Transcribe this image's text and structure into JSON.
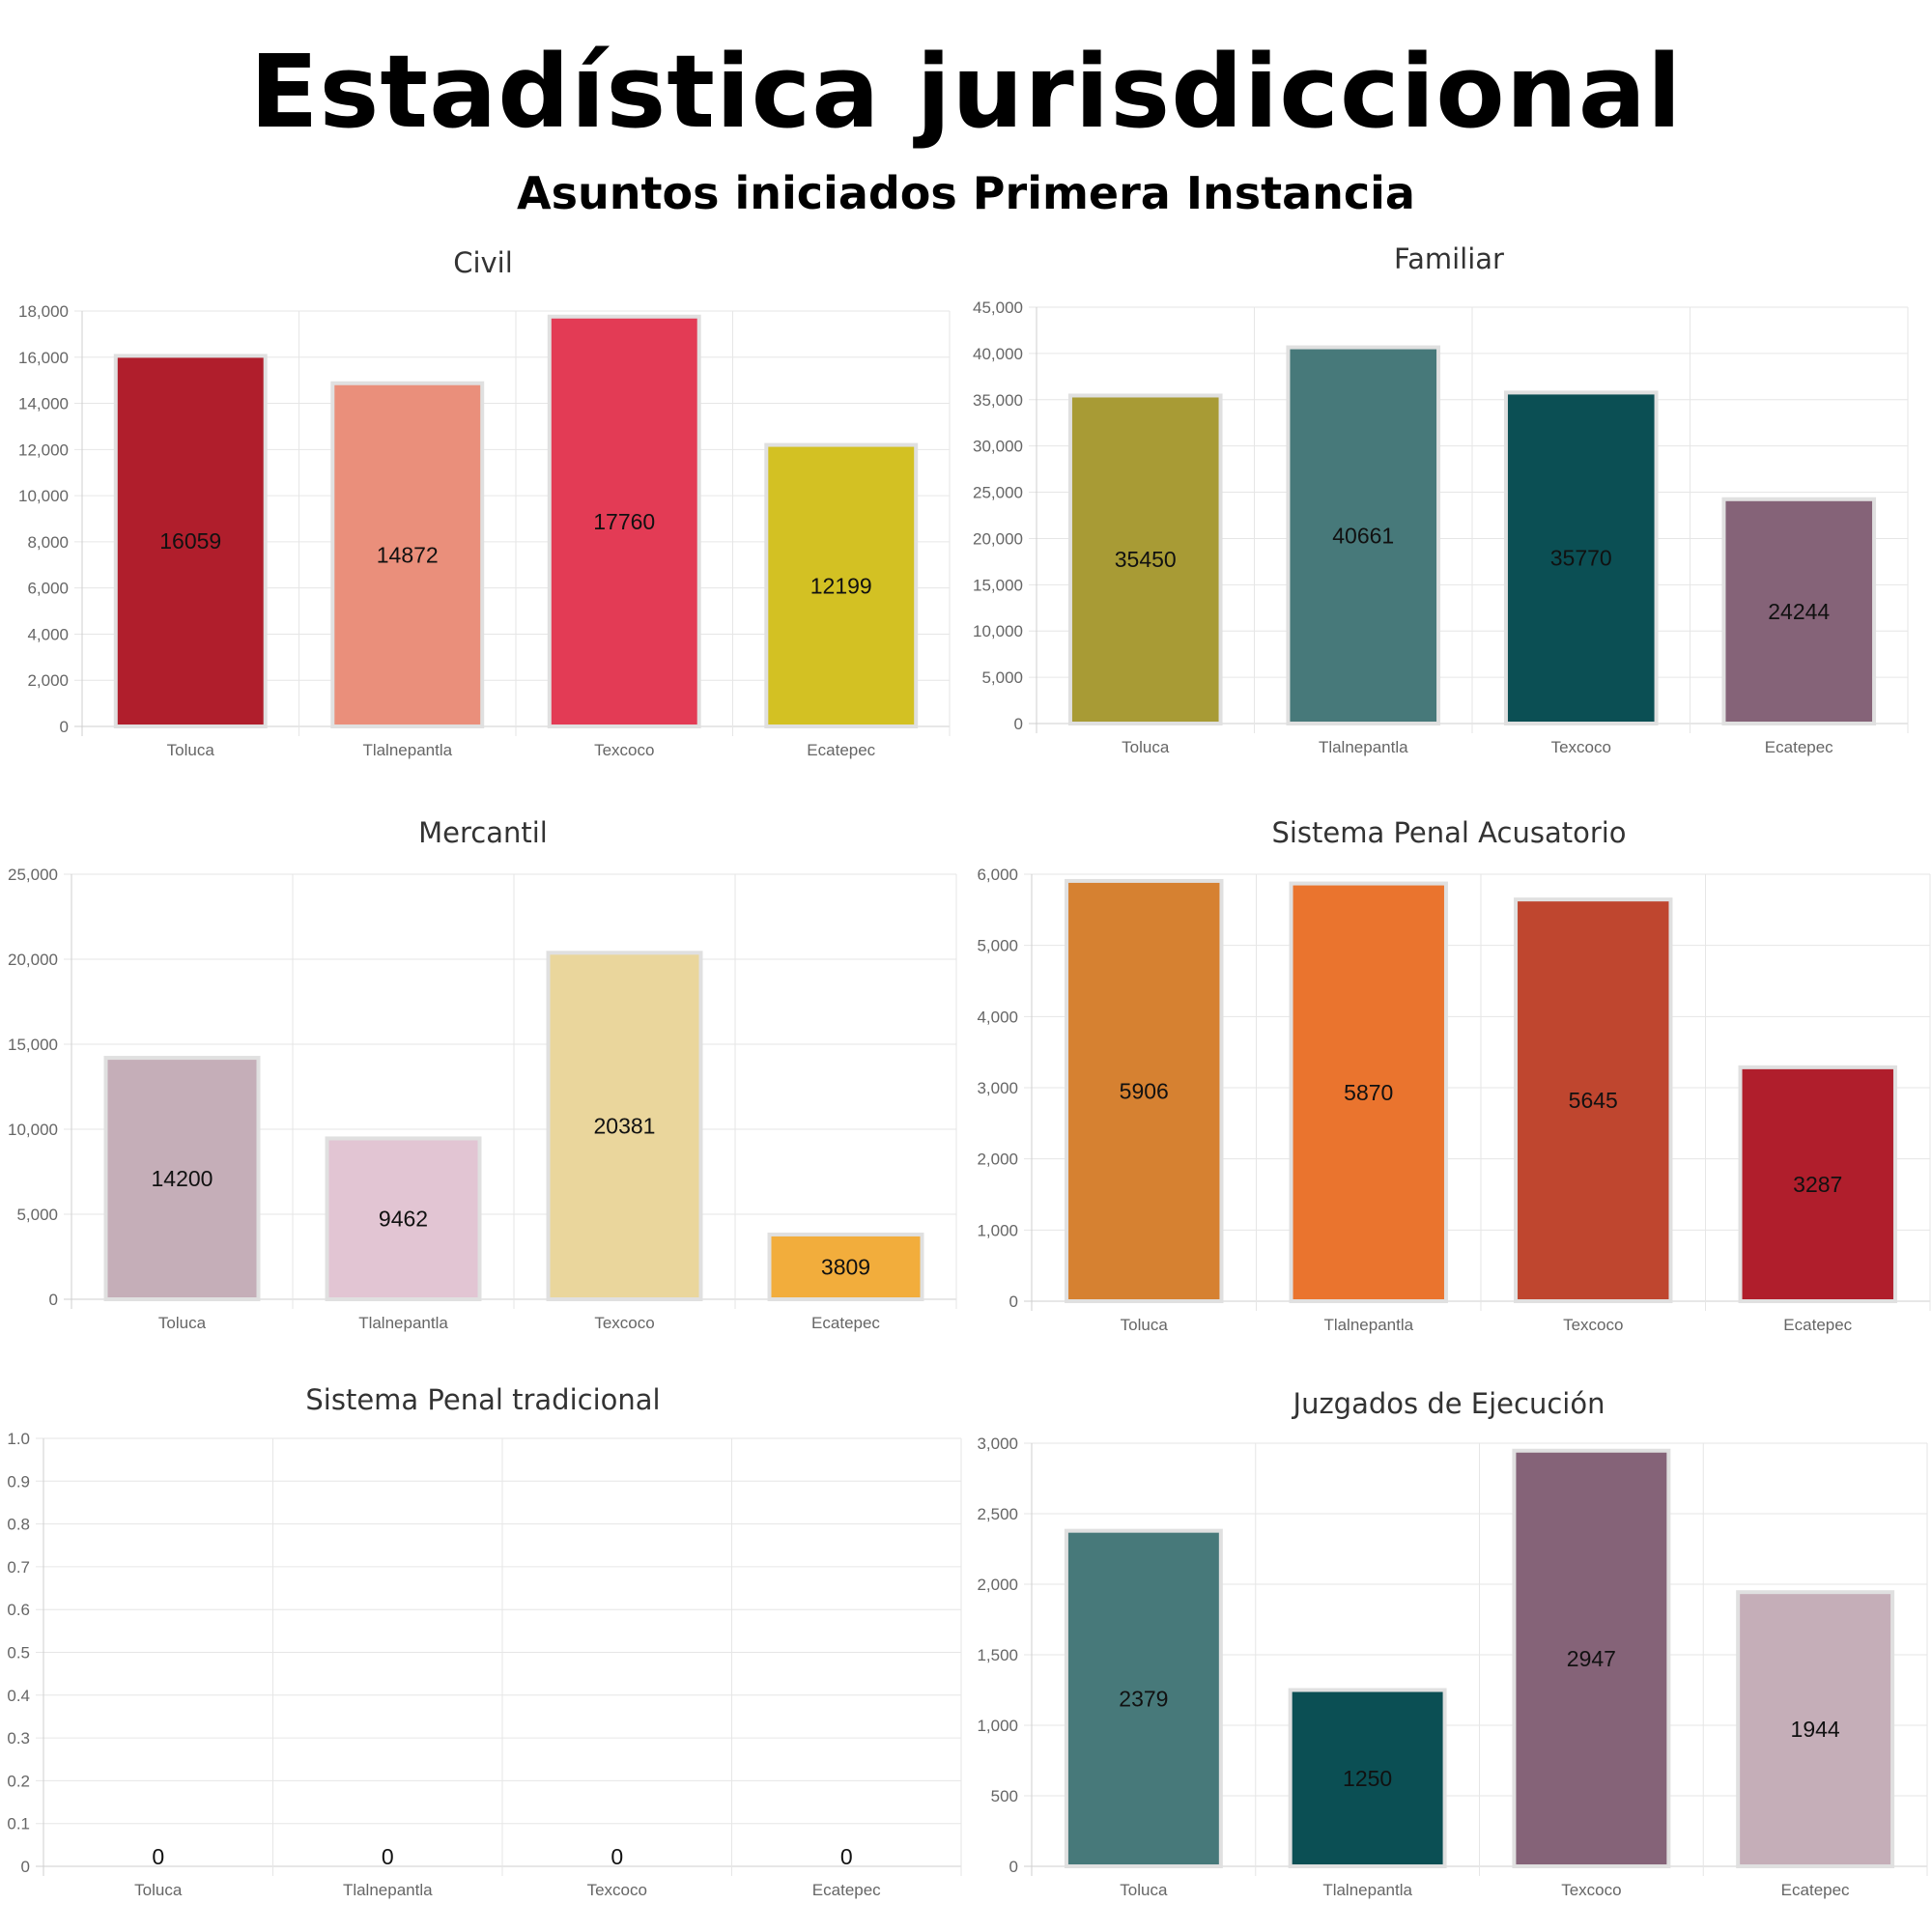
{
  "header": {
    "title": "Estadística jurisdiccional",
    "subtitle": "Asuntos iniciados Primera Instancia"
  },
  "chart_data": [
    {
      "type": "bar",
      "title": "Civil",
      "categories": [
        "Toluca",
        "Tlalnepantla",
        "Texcoco",
        "Ecatepec"
      ],
      "values": [
        16059,
        14872,
        17760,
        12199
      ],
      "colors": [
        "#b01e2c",
        "#ea8f7b",
        "#e33b55",
        "#d3c123"
      ],
      "ylim": [
        0,
        18000
      ],
      "yticks": [
        "0",
        "2,000",
        "4,000",
        "6,000",
        "8,000",
        "10,000",
        "12,000",
        "14,000",
        "16,000",
        "18,000"
      ],
      "grid": true
    },
    {
      "type": "bar",
      "title": "Familiar",
      "categories": [
        "Toluca",
        "Tlalnepantla",
        "Texcoco",
        "Ecatepec"
      ],
      "values": [
        35450,
        40661,
        35770,
        24244
      ],
      "colors": [
        "#a89b35",
        "#47797a",
        "#0b4f54",
        "#856378"
      ],
      "ylim": [
        0,
        45000
      ],
      "yticks": [
        "0",
        "5,000",
        "10,000",
        "15,000",
        "20,000",
        "25,000",
        "30,000",
        "35,000",
        "40,000",
        "45,000"
      ],
      "grid": true
    },
    {
      "type": "bar",
      "title": "Mercantil",
      "categories": [
        "Toluca",
        "Tlalnepantla",
        "Texcoco",
        "Ecatepec"
      ],
      "values": [
        14200,
        9462,
        20381,
        3809
      ],
      "colors": [
        "#c5aeb8",
        "#e2c5d3",
        "#ead69c",
        "#f2ad3c"
      ],
      "ylim": [
        0,
        25000
      ],
      "yticks": [
        "0",
        "5,000",
        "10,000",
        "15,000",
        "20,000",
        "25,000"
      ],
      "grid": true
    },
    {
      "type": "bar",
      "title": "Sistema Penal Acusatorio",
      "categories": [
        "Toluca",
        "Tlalnepantla",
        "Texcoco",
        "Ecatepec"
      ],
      "values": [
        5906,
        5870,
        5645,
        3287
      ],
      "colors": [
        "#d68131",
        "#ea742e",
        "#bf462f",
        "#b01e2c"
      ],
      "ylim": [
        0,
        6000
      ],
      "yticks": [
        "0",
        "1,000",
        "2,000",
        "3,000",
        "4,000",
        "5,000",
        "6,000"
      ],
      "grid": true
    },
    {
      "type": "bar",
      "title": "Sistema Penal tradicional",
      "categories": [
        "Toluca",
        "Tlalnepantla",
        "Texcoco",
        "Ecatepec"
      ],
      "values": [
        0,
        0,
        0,
        0
      ],
      "colors": [
        "#cccccc",
        "#cccccc",
        "#cccccc",
        "#cccccc"
      ],
      "ylim": [
        0,
        1
      ],
      "yticks": [
        "0",
        "0.1",
        "0.2",
        "0.3",
        "0.4",
        "0.5",
        "0.6",
        "0.7",
        "0.8",
        "0.9",
        "1.0"
      ],
      "grid": true
    },
    {
      "type": "bar",
      "title": "Juzgados de Ejecución",
      "categories": [
        "Toluca",
        "Tlalnepantla",
        "Texcoco",
        "Ecatepec"
      ],
      "values": [
        2379,
        1250,
        2947,
        1944
      ],
      "colors": [
        "#47797a",
        "#0b4f54",
        "#856378",
        "#c5aeb8"
      ],
      "ylim": [
        0,
        3000
      ],
      "yticks": [
        "0",
        "500",
        "1,000",
        "1,500",
        "2,000",
        "2,500",
        "3,000"
      ],
      "grid": true
    }
  ]
}
